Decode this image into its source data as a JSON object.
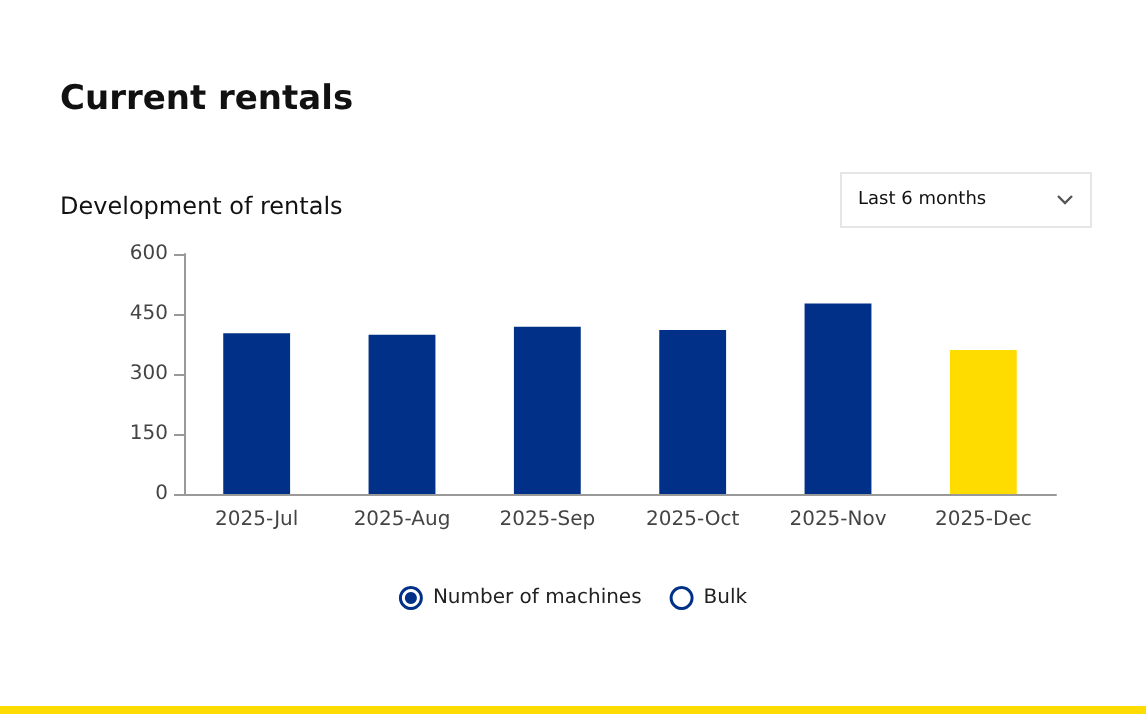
{
  "chart_data": {
    "type": "bar",
    "title": "Current rentals",
    "subtitle": "Development of rentals",
    "annotations": [
      "Last 6 months"
    ],
    "categories": [
      "2025-Jul",
      "2025-Aug",
      "2025-Sep",
      "2025-Oct",
      "2025-Nov",
      "2025-Dec"
    ],
    "series": [
      {
        "name": "Number of machines",
        "color": "#003087",
        "colors": [
          "#003087",
          "#003087",
          "#003087",
          "#003087",
          "#003087",
          "#ffdc00"
        ],
        "values": [
          402,
          398,
          418,
          410,
          476,
          360
        ]
      },
      {
        "name": "Bulk",
        "color": "#003087",
        "values": [
          null,
          null,
          null,
          null,
          null,
          null
        ]
      }
    ],
    "ylim": [
      0,
      600
    ],
    "yticks": [
      0,
      150,
      300,
      450,
      600
    ],
    "grid": false,
    "legend": "bottom"
  }
}
